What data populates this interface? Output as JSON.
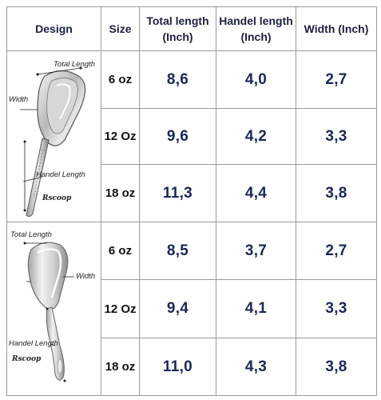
{
  "headers": {
    "design": "Design",
    "size": "Size",
    "total_length": "Total length (Inch)",
    "handel_length": "Handel length (Inch)",
    "width": "Width (Inch)"
  },
  "design_1": {
    "label_total": "Total Length",
    "label_width": "Width",
    "label_handel": "Handel Length"
  },
  "design_2": {
    "label_total": "Total Length",
    "label_width": "Width",
    "label_handel": "Handel Length"
  },
  "rows": [
    {
      "size": "6 oz",
      "total": "8,6",
      "handel": "4,0",
      "width": "2,7"
    },
    {
      "size": "12 Oz",
      "total": "9,6",
      "handel": "4,2",
      "width": "3,3"
    },
    {
      "size": "18 oz",
      "total": "11,3",
      "handel": "4,4",
      "width": "3,8"
    },
    {
      "size": "6 oz",
      "total": "8,5",
      "handel": "3,7",
      "width": "2,7"
    },
    {
      "size": "12 Oz",
      "total": "9,4",
      "handel": "4,1",
      "width": "3,3"
    },
    {
      "size": "18 oz",
      "total": "11,0",
      "handel": "4,3",
      "width": "3,8"
    }
  ],
  "colors": {
    "value_text": "#1b2757",
    "header_text": "#1c2140",
    "border": "#9a9a9a"
  },
  "icons": [
    "scoop-1-illustration",
    "scoop-2-illustration"
  ]
}
